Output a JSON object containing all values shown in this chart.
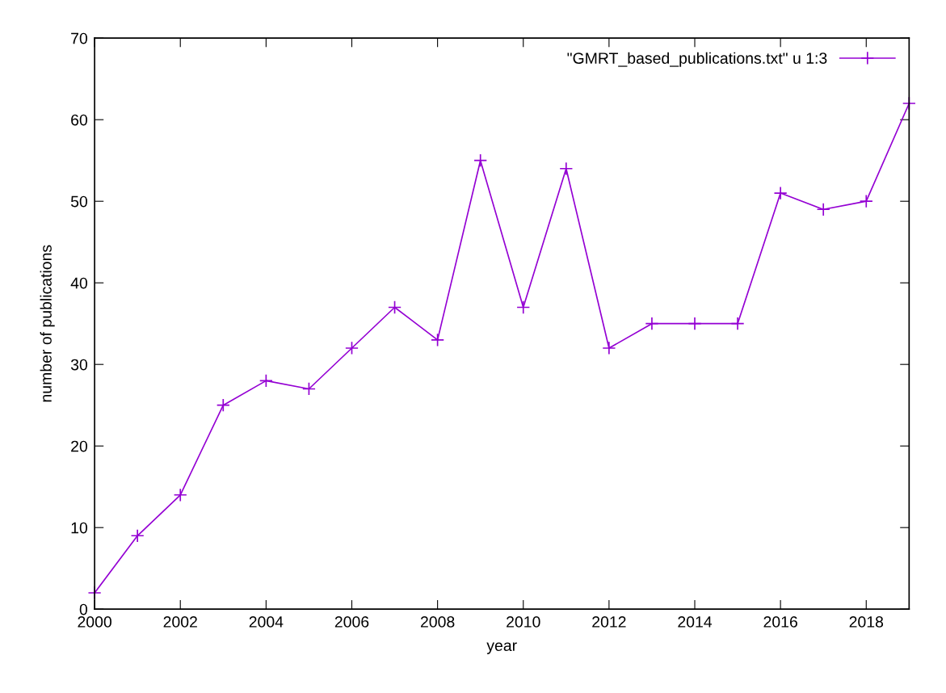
{
  "chart_data": {
    "type": "line",
    "xlabel": "year",
    "ylabel": "number of publications",
    "x": [
      2000,
      2001,
      2002,
      2003,
      2004,
      2005,
      2006,
      2007,
      2008,
      2009,
      2010,
      2011,
      2012,
      2013,
      2014,
      2015,
      2016,
      2017,
      2018,
      2019
    ],
    "series": [
      {
        "name": "\"GMRT_based_publications.txt\" u 1:3",
        "color": "#9400d3",
        "values": [
          2,
          9,
          14,
          25,
          28,
          27,
          32,
          37,
          33,
          55,
          37,
          54,
          32,
          35,
          35,
          35,
          51,
          49,
          50,
          62
        ]
      }
    ],
    "xlim": [
      2000,
      2019
    ],
    "xticks": [
      2000,
      2002,
      2004,
      2006,
      2008,
      2010,
      2012,
      2014,
      2016,
      2018
    ],
    "ylim": [
      0,
      70
    ],
    "yticks": [
      0,
      10,
      20,
      30,
      40,
      50,
      60,
      70
    ],
    "grid": false,
    "legend": "top right",
    "marker": "cross",
    "line_style": "solid"
  }
}
